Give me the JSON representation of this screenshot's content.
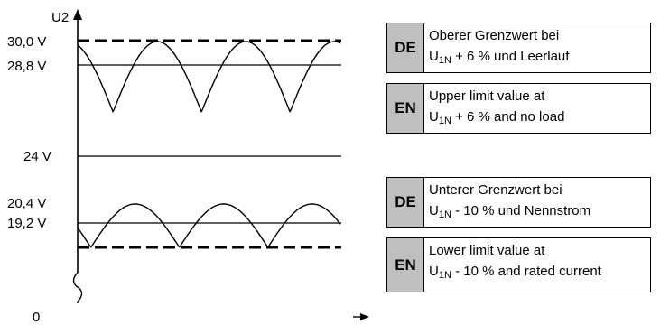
{
  "axis": {
    "y_label": "U2",
    "zero_label": "0",
    "ticks": [
      "30,0 V",
      "28,8 V",
      "24 V",
      "20,4 V",
      "19,2 V"
    ]
  },
  "legend": {
    "upper": {
      "de": {
        "lang": "DE",
        "line1": "Oberer Grenzwert bei",
        "u": "U",
        "sub": "1N",
        "rest": " + 6 % und Leerlauf"
      },
      "en": {
        "lang": "EN",
        "line1": "Upper limit value at",
        "u": "U",
        "sub": "1N",
        "rest": " + 6 % and no load"
      }
    },
    "lower": {
      "de": {
        "lang": "DE",
        "line1": "Unterer Grenzwert bei",
        "u": "U",
        "sub": "1N",
        "rest": " - 10 % und Nennstrom"
      },
      "en": {
        "lang": "EN",
        "line1": "Lower limit value at",
        "u": "U",
        "sub": "1N",
        "rest": " - 10 % and rated current"
      }
    }
  }
}
